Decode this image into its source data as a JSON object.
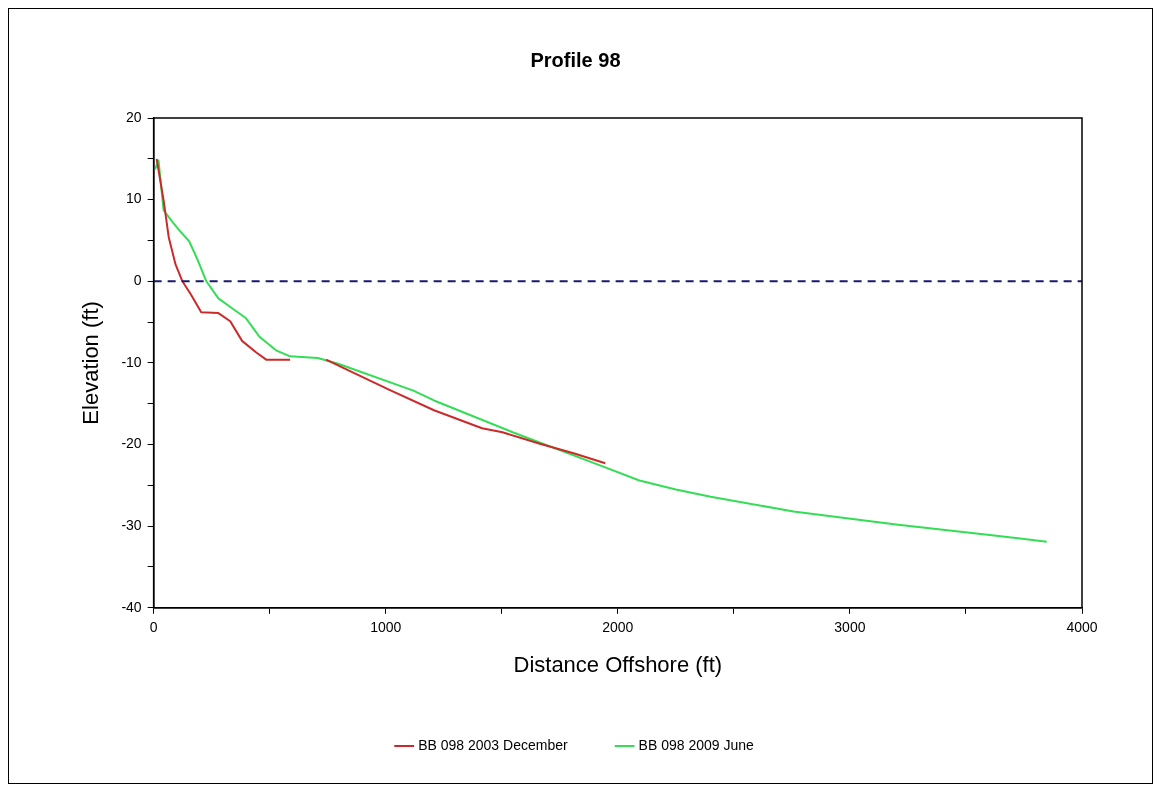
{
  "chart_data": {
    "type": "line",
    "title": "Profile 98",
    "xlabel": "Distance Offshore (ft)",
    "ylabel": "Elevation (ft)",
    "xlim": [
      0,
      4000
    ],
    "xticks": [
      0,
      {
        "value": 500,
        "label": null
      },
      1000,
      {
        "value": 1500,
        "label": null
      },
      2000,
      {
        "value": 2500,
        "label": null
      },
      3000,
      {
        "value": 3500,
        "label": null
      },
      4000
    ],
    "ylim": [
      -40,
      20
    ],
    "yticks": [
      -40,
      {
        "value": -35,
        "label": null
      },
      -30,
      {
        "value": -25,
        "label": null
      },
      -20,
      {
        "value": -15,
        "label": null
      },
      -10,
      {
        "value": -5,
        "label": null
      },
      0,
      {
        "value": 5,
        "label": null
      },
      10,
      {
        "value": 15,
        "label": null
      },
      20
    ],
    "grid": false,
    "legend": "bottom",
    "marker": "none",
    "line_style": "solid",
    "ref_lines": [
      {
        "axis": "y",
        "value": 0,
        "color": "#1a1a6e",
        "line_style": "dashed"
      }
    ],
    "series": [
      {
        "name": "BB 098 2003 December",
        "color": "#cc2a2a",
        "x": [
          13,
          43,
          65,
          94,
          124,
          160,
          205,
          279,
          330,
          381,
          441,
          485,
          588,
          null,
          743,
          817,
          1016,
          1208,
          1415,
          1503,
          1664,
          1813,
          1946
        ],
        "values": [
          15,
          9.9,
          5.4,
          2.1,
          0,
          -1.6,
          -3.8,
          -3.9,
          -4.9,
          -7.3,
          -8.7,
          -9.6,
          -9.6,
          null,
          -9.6,
          -10.6,
          -13.3,
          -15.8,
          -18,
          -18.5,
          -19.9,
          -21.1,
          -22.3
        ]
      },
      {
        "name": "BB 098 2009 June",
        "color": "#33dd55",
        "x": [
          6,
          21,
          43,
          80,
          109,
          153,
          190,
          227,
          279,
          338,
          397,
          456,
          530,
          588,
          707,
          795,
          1119,
          1208,
          1547,
          1946,
          2093,
          2250,
          2400,
          2757,
          3199,
          3612,
          3848
        ],
        "values": [
          13.7,
          14.8,
          8.7,
          7.3,
          6.3,
          4.9,
          2.6,
          0,
          -2.1,
          -3.3,
          -4.5,
          -6.8,
          -8.5,
          -9.2,
          -9.4,
          -10.1,
          -13.4,
          -14.6,
          -18.5,
          -22.8,
          -24.4,
          -25.5,
          -26.4,
          -28.2,
          -29.8,
          -31.1,
          -31.9
        ]
      }
    ]
  }
}
